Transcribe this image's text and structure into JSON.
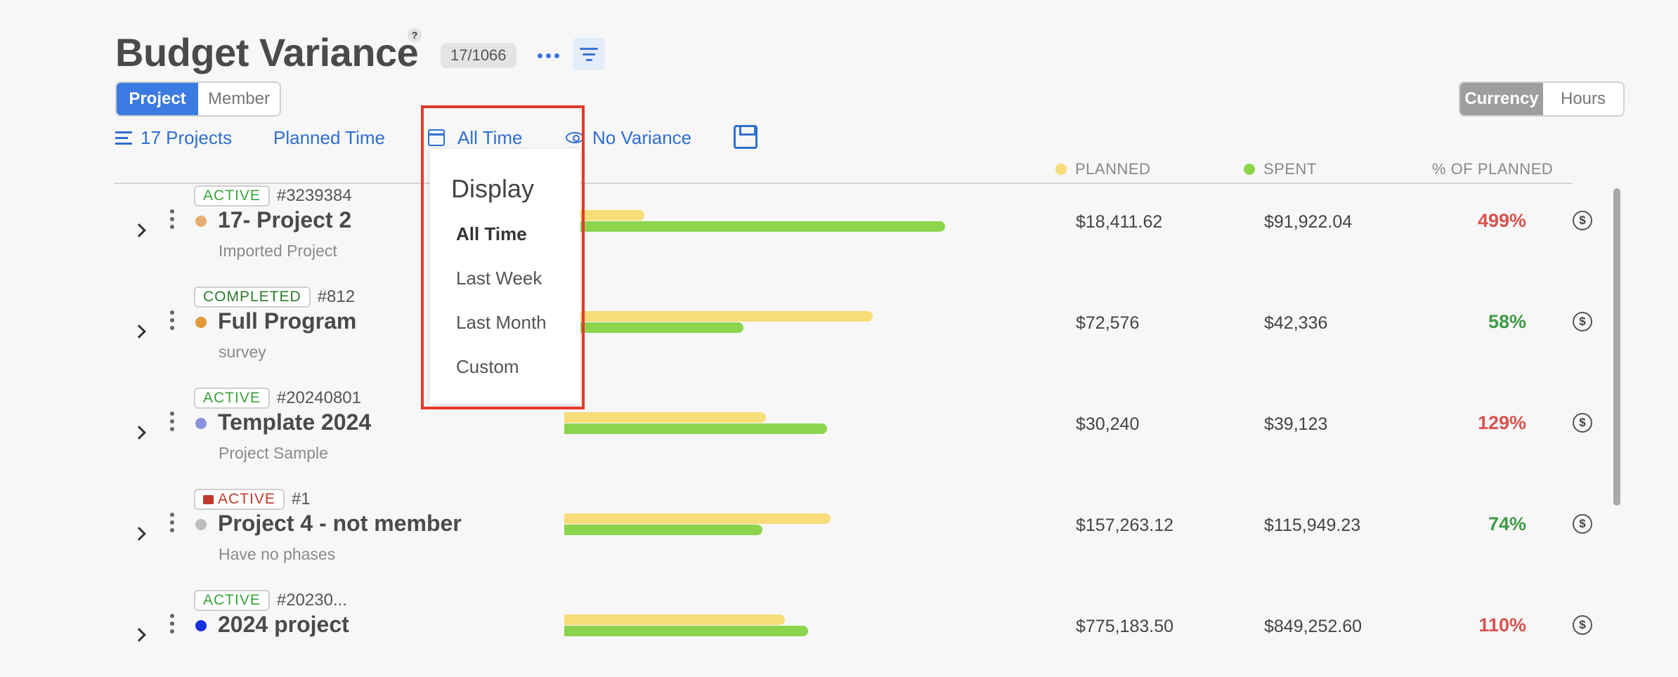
{
  "header": {
    "title": "Budget Variance",
    "help": "?",
    "count": "17/1066"
  },
  "view_toggle": {
    "project": "Project",
    "member": "Member"
  },
  "unit_toggle": {
    "currency": "Currency",
    "hours": "Hours"
  },
  "toolbar": {
    "projects": "17 Projects",
    "planned_time": "Planned Time",
    "all_time": "All Time",
    "variance": "No Variance"
  },
  "columns": {
    "planned": "PLANNED",
    "spent": "SPENT",
    "pct": "% OF PLANNED"
  },
  "colors": {
    "planned": "#f7dc77",
    "spent": "#8bd44b",
    "accent": "#3b7ae0"
  },
  "dropdown": {
    "title": "Display",
    "items": [
      "All Time",
      "Last Week",
      "Last Month",
      "Custom"
    ],
    "selected": "All Time"
  },
  "rows": [
    {
      "status": "ACTIVE",
      "code": "#3239384",
      "name": "17- Project 2",
      "sub": "Imported Project",
      "dot": "#e6ad6e",
      "planned": "$18,411.62",
      "spent": "$91,922.04",
      "pct": "499%",
      "planned_ratio": 0.21,
      "spent_ratio": 1.0
    },
    {
      "status": "COMPLETED",
      "code": "#812",
      "name": "Full Program",
      "sub": "survey",
      "dot": "#e09a38",
      "planned": "$72,576",
      "spent": "$42,336",
      "pct": "58%",
      "planned_ratio": 0.81,
      "spent_ratio": 0.47
    },
    {
      "status": "ACTIVE",
      "code": "#20240801",
      "name": "Template 2024",
      "sub": "Project Sample",
      "dot": "#8a90e0",
      "planned": "$30,240",
      "spent": "$39,123",
      "pct": "129%",
      "planned_ratio": 0.53,
      "spent_ratio": 0.69
    },
    {
      "status": "ACTIVE",
      "code": "#1",
      "name": "Project 4 - not member",
      "sub": "Have no phases",
      "dot": "#bdbdbd",
      "planned": "$157,263.12",
      "spent": "$115,949.23",
      "pct": "74%",
      "planned_ratio": 0.7,
      "spent_ratio": 0.52
    },
    {
      "status": "ACTIVE",
      "code": "#20230...",
      "name": "2024 project",
      "sub": "",
      "dot": "#1630e0",
      "planned": "$775,183.50",
      "spent": "$849,252.60",
      "pct": "110%",
      "planned_ratio": 0.58,
      "spent_ratio": 0.64
    }
  ]
}
